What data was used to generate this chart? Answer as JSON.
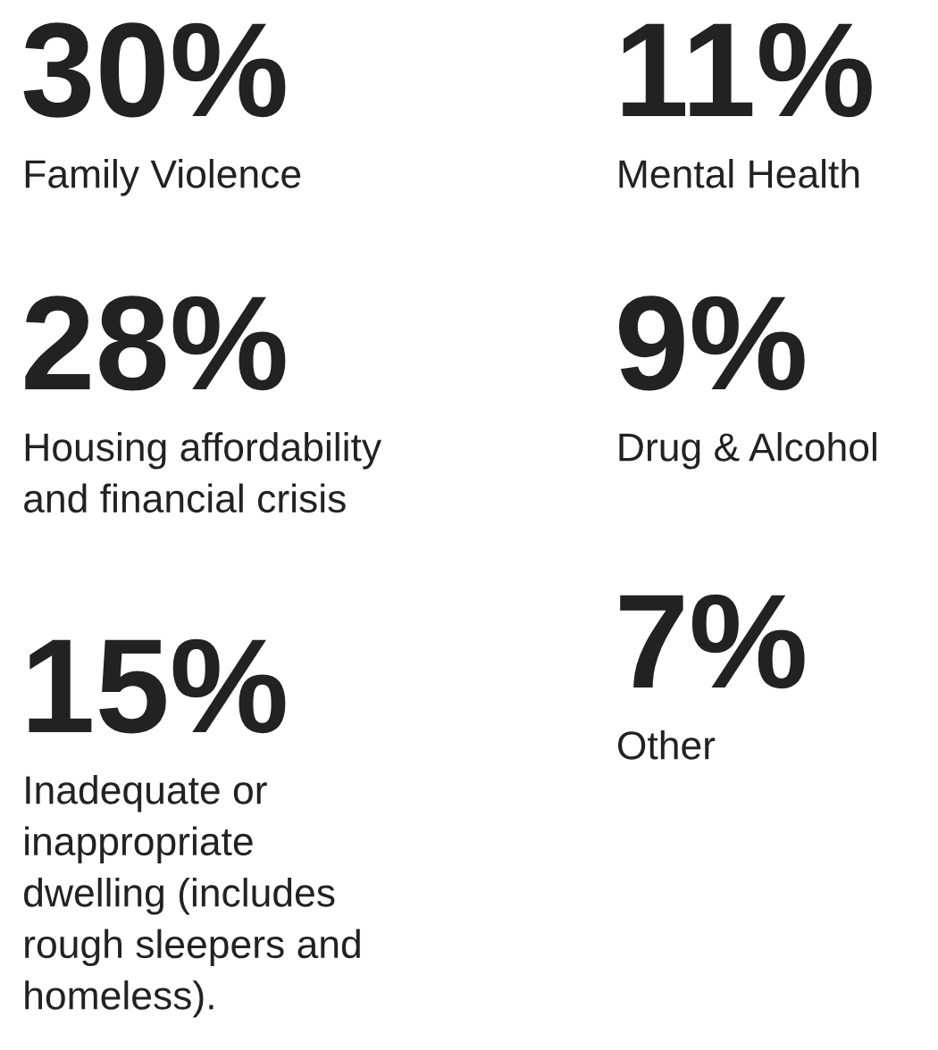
{
  "chart_data": {
    "type": "other",
    "categories": [
      "Family Violence",
      "Housing affordability\nand financial crisis",
      "Inadequate or\ninappropriate\ndwelling (includes\nrough sleepers and\nhomeless).",
      "Mental Health",
      "Drug & Alcohol",
      "Other"
    ],
    "values": [
      30,
      28,
      15,
      11,
      9,
      7
    ],
    "value_labels": [
      "30%",
      "28%",
      "15%",
      "11%",
      "9%",
      "7%"
    ],
    "color": "#222222"
  }
}
